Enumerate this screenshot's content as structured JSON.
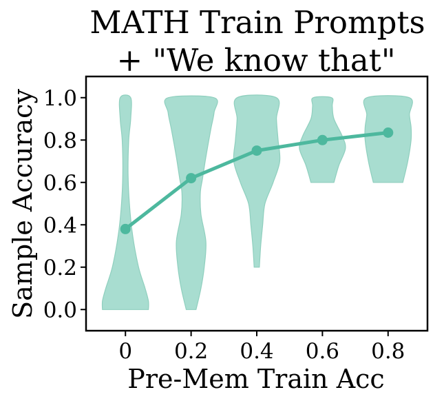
{
  "chart_data": {
    "type": "violin",
    "title_lines": [
      "MATH Train Prompts",
      "+ \"We know that\""
    ],
    "xlabel": "Pre-Mem Train Acc",
    "ylabel": "Sample Accuracy",
    "x_ticks": [
      "0",
      "0.2",
      "0.4",
      "0.6",
      "0.8"
    ],
    "y_ticks": [
      "0.0",
      "0.2",
      "0.4",
      "0.6",
      "0.8",
      "1.0"
    ],
    "xlim": [
      -0.12,
      0.92
    ],
    "ylim": [
      -0.1,
      1.1
    ],
    "colors": {
      "violin_fill": "#a8ddd0",
      "violin_edge": "#8fcfbe",
      "line": "#4db89e"
    },
    "mean_line": {
      "x": [
        0,
        0.2,
        0.4,
        0.6,
        0.8
      ],
      "y": [
        0.38,
        0.62,
        0.75,
        0.8,
        0.835
      ]
    },
    "violins": [
      {
        "x": 0,
        "profile": [
          [
            0.0,
            0.07
          ],
          [
            0.04,
            0.07
          ],
          [
            0.1,
            0.06
          ],
          [
            0.2,
            0.04
          ],
          [
            0.35,
            0.022
          ],
          [
            0.5,
            0.012
          ],
          [
            0.65,
            0.008
          ],
          [
            0.8,
            0.01
          ],
          [
            0.9,
            0.016
          ],
          [
            1.0,
            0.016
          ]
        ]
      },
      {
        "x": 0.2,
        "profile": [
          [
            0.0,
            0.015
          ],
          [
            0.1,
            0.03
          ],
          [
            0.2,
            0.04
          ],
          [
            0.32,
            0.045
          ],
          [
            0.45,
            0.03
          ],
          [
            0.55,
            0.028
          ],
          [
            0.62,
            0.035
          ],
          [
            0.72,
            0.045
          ],
          [
            0.85,
            0.06
          ],
          [
            0.93,
            0.07
          ],
          [
            1.0,
            0.07
          ]
        ]
      },
      {
        "x": 0.4,
        "profile": [
          [
            0.2,
            0.008
          ],
          [
            0.3,
            0.012
          ],
          [
            0.4,
            0.018
          ],
          [
            0.5,
            0.025
          ],
          [
            0.6,
            0.05
          ],
          [
            0.7,
            0.07
          ],
          [
            0.8,
            0.065
          ],
          [
            0.9,
            0.06
          ],
          [
            1.0,
            0.06
          ]
        ]
      },
      {
        "x": 0.6,
        "profile": [
          [
            0.6,
            0.035
          ],
          [
            0.68,
            0.05
          ],
          [
            0.76,
            0.07
          ],
          [
            0.82,
            0.06
          ],
          [
            0.9,
            0.035
          ],
          [
            0.96,
            0.03
          ],
          [
            1.0,
            0.028
          ]
        ]
      },
      {
        "x": 0.8,
        "profile": [
          [
            0.6,
            0.045
          ],
          [
            0.7,
            0.06
          ],
          [
            0.8,
            0.07
          ],
          [
            0.86,
            0.07
          ],
          [
            0.92,
            0.065
          ],
          [
            1.0,
            0.065
          ]
        ]
      }
    ]
  }
}
